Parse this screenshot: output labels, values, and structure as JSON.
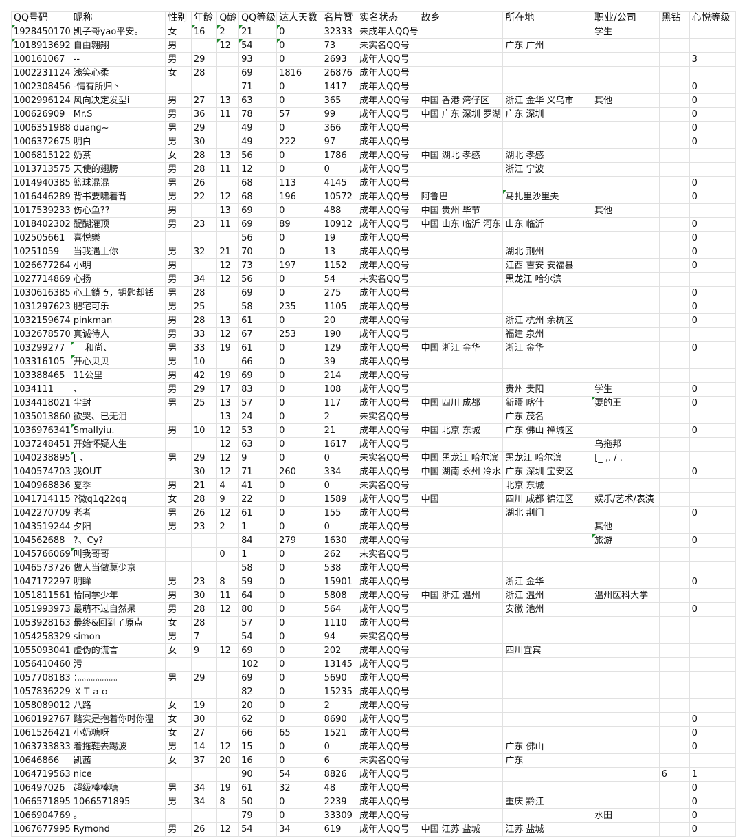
{
  "columns": [
    "QQ号码",
    "昵称",
    "性别",
    "年龄",
    "Q龄",
    "QQ等级",
    "达人天数",
    "名片赞",
    "实名状态",
    "故乡",
    "所在地",
    "职业/公司",
    "黑钻",
    "心悦等级"
  ],
  "marker_color": "#1e8a2c",
  "rows": [
    {
      "c": [
        "1928450170",
        "凯子哥yao平安。",
        "女",
        "16",
        "2",
        "21",
        "0",
        "32333",
        "未成年人QQ号",
        "",
        "",
        "学生",
        "",
        ""
      ],
      "marked": [
        0,
        3,
        4,
        5,
        6
      ]
    },
    {
      "c": [
        "1018913692",
        "自由翱翔",
        "男",
        "",
        "12",
        "54",
        "0",
        "73",
        "未实名QQ号",
        "",
        "广东 广州",
        "",
        "",
        ""
      ],
      "marked": [
        0,
        4,
        5,
        6
      ]
    },
    {
      "c": [
        "100161067",
        "--",
        "男",
        "29",
        "",
        "93",
        "0",
        "2693",
        "成年人QQ号",
        "",
        "",
        "",
        "",
        "3"
      ]
    },
    {
      "c": [
        "1002231124",
        "浅笑心柔",
        "女",
        "28",
        "",
        "69",
        "1816",
        "26876",
        "成年人QQ号",
        "",
        "",
        "",
        "",
        ""
      ]
    },
    {
      "c": [
        "1002308456",
        "-情有所归丶",
        "",
        "",
        "",
        "71",
        "0",
        "1417",
        "成年人QQ号",
        "",
        "",
        "",
        "",
        "0"
      ]
    },
    {
      "c": [
        "1002996124",
        "风向决定发型i",
        "男",
        "27",
        "13",
        "63",
        "0",
        "365",
        "成年人QQ号",
        "中国 香港 湾仔区",
        "浙江 金华 义乌市",
        "其他",
        "",
        "0"
      ]
    },
    {
      "c": [
        "100626909",
        "Mr.S",
        "男",
        "36",
        "11",
        "78",
        "57",
        "99",
        "成年人QQ号",
        "中国 广东 深圳 罗湖",
        "广东 深圳",
        "",
        "",
        "0"
      ]
    },
    {
      "c": [
        "1006351988",
        "duang~",
        "男",
        "29",
        "",
        "49",
        "0",
        "366",
        "成年人QQ号",
        "",
        "",
        "",
        "",
        "0"
      ]
    },
    {
      "c": [
        "1006372675",
        "明白",
        "男",
        "30",
        "",
        "49",
        "222",
        "97",
        "成年人QQ号",
        "",
        "",
        "",
        "",
        "0"
      ]
    },
    {
      "c": [
        "1006815122",
        "奶茶",
        "女",
        "28",
        "13",
        "56",
        "0",
        "1786",
        "成年人QQ号",
        "中国 湖北 孝感",
        "湖北 孝感",
        "",
        "",
        ""
      ]
    },
    {
      "c": [
        "1013713575",
        "天使的翅膀",
        "男",
        "28",
        "11",
        "12",
        "0",
        "0",
        "成年人QQ号",
        "",
        "浙江 宁波",
        "",
        "",
        ""
      ]
    },
    {
      "c": [
        "1014940385",
        "篮球混混",
        "男",
        "26",
        "",
        "68",
        "113",
        "4145",
        "成年人QQ号",
        "",
        "",
        "",
        "",
        "0"
      ]
    },
    {
      "c": [
        "1016446289",
        "背书要啸着背",
        "男",
        "22",
        "12",
        "68",
        "196",
        "10572",
        "成年人QQ号",
        "阿鲁巴",
        "马扎里沙里夫",
        "",
        "",
        "0"
      ],
      "marked": [
        10
      ]
    },
    {
      "c": [
        "1017539233",
        "伤心鱼??",
        "男",
        "",
        "13",
        "69",
        "0",
        "488",
        "成年人QQ号",
        "中国 贵州 毕节",
        "",
        "其他",
        "",
        ""
      ]
    },
    {
      "c": [
        "1018402302",
        "醍醐灌顶",
        "男",
        "23",
        "11",
        "69",
        "89",
        "10912",
        "成年人QQ号",
        "中国 山东 临沂 河东",
        "山东 临沂",
        "",
        "",
        "0"
      ]
    },
    {
      "c": [
        "102505661",
        "喜悦樂",
        "",
        "",
        "",
        "56",
        "0",
        "19",
        "成年人QQ号",
        "",
        "",
        "",
        "",
        "0"
      ]
    },
    {
      "c": [
        "10251059",
        "当我遇上你",
        "男",
        "32",
        "21",
        "70",
        "0",
        "13",
        "成年人QQ号",
        "",
        "湖北 荆州",
        "",
        "",
        "0"
      ]
    },
    {
      "c": [
        "1026677264",
        "小明",
        "男",
        "",
        "12",
        "73",
        "197",
        "1152",
        "成年人QQ号",
        "",
        "江西 吉安 安福县",
        "",
        "",
        "0"
      ]
    },
    {
      "c": [
        "1027714869",
        "心扬",
        "男",
        "34",
        "12",
        "56",
        "0",
        "54",
        "未实名QQ号",
        "",
        "黑龙江 哈尔滨",
        "",
        "",
        ""
      ]
    },
    {
      "c": [
        "1030616385",
        "心上鎖ㄋ，钥匙却铥",
        "男",
        "28",
        "",
        "69",
        "0",
        "275",
        "成年人QQ号",
        "",
        "",
        "",
        "",
        "0"
      ]
    },
    {
      "c": [
        "1031297623",
        "肥宅可乐",
        "男",
        "25",
        "",
        "58",
        "235",
        "1105",
        "成年人QQ号",
        "",
        "",
        "",
        "",
        "0"
      ]
    },
    {
      "c": [
        "1032159674",
        "pinkman",
        "男",
        "28",
        "13",
        "61",
        "0",
        "20",
        "成年人QQ号",
        "",
        "浙江 杭州 余杭区",
        "",
        "",
        "0"
      ]
    },
    {
      "c": [
        "1032678570",
        "真诚待人",
        "男",
        "33",
        "12",
        "67",
        "253",
        "190",
        "成年人QQ号",
        "",
        "福建 泉州",
        "",
        "",
        ""
      ]
    },
    {
      "c": [
        "103299277",
        "　 和尚、",
        "男",
        "33",
        "19",
        "61",
        "0",
        "129",
        "成年人QQ号",
        "中国 浙江 金华",
        "浙江 金华",
        "",
        "",
        "0"
      ],
      "marked": [
        1
      ]
    },
    {
      "c": [
        "103316105",
        "开心贝贝",
        "男",
        "10",
        "",
        "66",
        "0",
        "39",
        "成年人QQ号",
        "",
        "",
        "",
        "",
        ""
      ],
      "marked": [
        1
      ]
    },
    {
      "c": [
        "103388465",
        "11公里",
        "男",
        "42",
        "19",
        "69",
        "0",
        "214",
        "成年人QQ号",
        "",
        "",
        "",
        "",
        ""
      ]
    },
    {
      "c": [
        "1034111",
        "、",
        "男",
        "29",
        "17",
        "83",
        "0",
        "108",
        "成年人QQ号",
        "",
        "贵州 贵阳",
        "学生",
        "",
        "0"
      ]
    },
    {
      "c": [
        "1034418021",
        "尘封",
        "男",
        "25",
        "13",
        "57",
        "0",
        "117",
        "成年人QQ号",
        "中国 四川 成都",
        "新疆 喀什",
        "耍的王",
        "",
        "0"
      ],
      "marked": [
        11
      ]
    },
    {
      "c": [
        "1035013860",
        "欲哭、已无泪",
        "",
        "",
        "13",
        "24",
        "0",
        "2",
        "未实名QQ号",
        "",
        "广东 茂名",
        "",
        "",
        ""
      ]
    },
    {
      "c": [
        "1036976341",
        "  Smallyiu.",
        "男",
        "10",
        "12",
        "53",
        "0",
        "21",
        "成年人QQ号",
        "中国 北京 东城",
        "广东 佛山 禅城区",
        "",
        "",
        "0"
      ],
      "marked": [
        1
      ]
    },
    {
      "c": [
        "1037248451",
        "开始怀疑人生",
        "",
        "",
        "12",
        "63",
        "0",
        "1617",
        "成年人QQ号",
        "",
        "",
        "乌拖邦",
        "",
        ""
      ]
    },
    {
      "c": [
        "1040238895",
        "   [  、",
        "男",
        "29",
        "12",
        "9",
        "0",
        "0",
        "未实名QQ号",
        "中国 黑龙江 哈尔滨",
        "黑龙江 哈尔滨",
        "[_  ,. / .",
        "",
        ""
      ],
      "marked": [
        1
      ]
    },
    {
      "c": [
        "1040574703",
        "我OUT",
        "",
        "30",
        "12",
        "71",
        "260",
        "334",
        "成年人QQ号",
        "中国 湖南 永州 冷水",
        "广东 深圳 宝安区",
        "",
        "",
        "0"
      ]
    },
    {
      "c": [
        "1040968836",
        "夏季",
        "男",
        "21",
        "4",
        "41",
        "0",
        "0",
        "未实名QQ号",
        "",
        "北京 东城",
        "",
        "",
        ""
      ]
    },
    {
      "c": [
        "1041714115",
        "?微q1q22qq",
        "女",
        "28",
        "9",
        "22",
        "0",
        "1589",
        "成年人QQ号",
        "中国",
        "四川 成都 锦江区",
        "娱乐/艺术/表演",
        "",
        ""
      ]
    },
    {
      "c": [
        "1042270709",
        "老者",
        "男",
        "26",
        "12",
        "61",
        "0",
        "155",
        "成年人QQ号",
        "",
        "湖北 荆门",
        "",
        "",
        "0"
      ]
    },
    {
      "c": [
        "1043519244",
        "夕阳",
        "男",
        "23",
        "2",
        "1",
        "0",
        "0",
        "成年人QQ号",
        "",
        "",
        "其他",
        "",
        ""
      ]
    },
    {
      "c": [
        "104562688",
        "?、Cy?",
        "",
        "",
        "",
        "84",
        "279",
        "1630",
        "成年人QQ号",
        "",
        "",
        "旅游",
        "",
        "0"
      ],
      "marked": [
        11
      ]
    },
    {
      "c": [
        "1045766069",
        "叫我哥哥",
        "",
        "",
        "0",
        "1",
        "0",
        "262",
        "未实名QQ号",
        "",
        "",
        "",
        "",
        ""
      ],
      "marked": [
        1
      ]
    },
    {
      "c": [
        "1046573726",
        "做人当做莫少京",
        "",
        "",
        "",
        "58",
        "0",
        "538",
        "成年人QQ号",
        "",
        "",
        "",
        "",
        ""
      ]
    },
    {
      "c": [
        "1047172297",
        "明眸",
        "男",
        "23",
        "8",
        "59",
        "0",
        "15901",
        "成年人QQ号",
        "",
        "浙江 金华",
        "",
        "",
        "0"
      ]
    },
    {
      "c": [
        "1051811561",
        "恰同学少年",
        "男",
        "30",
        "11",
        "64",
        "0",
        "5808",
        "成年人QQ号",
        "中国 浙江 温州",
        "浙江 温州",
        "温州医科大学",
        "",
        ""
      ]
    },
    {
      "c": [
        "1051993973",
        "最萌不过自然呆",
        "男",
        "28",
        "12",
        "80",
        "0",
        "564",
        "成年人QQ号",
        "",
        "安徽 池州",
        "",
        "",
        "0"
      ]
    },
    {
      "c": [
        "1053928163",
        "最终&回到了原点",
        "女",
        "28",
        "",
        "57",
        "0",
        "1110",
        "成年人QQ号",
        "",
        "",
        "",
        "",
        ""
      ]
    },
    {
      "c": [
        "1054258329",
        "simon",
        "男",
        "7",
        "",
        "54",
        "0",
        "94",
        "未实名QQ号",
        "",
        "",
        "",
        "",
        ""
      ]
    },
    {
      "c": [
        "1055093041",
        "虚伪的谎言",
        "女",
        "9",
        "12",
        "69",
        "0",
        "202",
        "成年人QQ号",
        "",
        "四川宜宾",
        "",
        "",
        ""
      ]
    },
    {
      "c": [
        "1056410460",
        "污",
        "",
        "",
        "",
        "102",
        "0",
        "13145",
        "成年人QQ号",
        "",
        "",
        "",
        "",
        ""
      ]
    },
    {
      "c": [
        "1057708183",
        "：。。。。。。。。。",
        "男",
        "29",
        "",
        "69",
        "0",
        "5690",
        "成年人QQ号",
        "",
        "",
        "",
        "",
        ""
      ]
    },
    {
      "c": [
        "1057836229",
        "ＸＴａｏ",
        "",
        "",
        "",
        "82",
        "0",
        "15235",
        "成年人QQ号",
        "",
        "",
        "",
        "",
        ""
      ]
    },
    {
      "c": [
        "1058089012",
        "八路",
        "女",
        "19",
        "",
        "20",
        "0",
        "2",
        "成年人QQ号",
        "",
        "",
        "",
        "",
        ""
      ]
    },
    {
      "c": [
        "1060192767",
        "踏实是抱着你时你温",
        "女",
        "30",
        "",
        "62",
        "0",
        "8690",
        "成年人QQ号",
        "",
        "",
        "",
        "",
        "0"
      ]
    },
    {
      "c": [
        "1061526421",
        "小奶糖呀",
        "女",
        "27",
        "",
        "66",
        "65",
        "1521",
        "成年人QQ号",
        "",
        "",
        "",
        "",
        "0"
      ]
    },
    {
      "c": [
        "1063733833",
        "着拖鞋去踢波",
        "男",
        "14",
        "12",
        "15",
        "0",
        "0",
        "成年人QQ号",
        "",
        "广东 佛山",
        "",
        "",
        "0"
      ]
    },
    {
      "c": [
        "10646866",
        "凯茜",
        "女",
        "37",
        "20",
        "16",
        "0",
        "6",
        "未实名QQ号",
        "",
        "广东",
        "",
        "",
        ""
      ]
    },
    {
      "c": [
        "1064719563",
        "nice",
        "",
        "",
        "",
        "90",
        "54",
        "8826",
        "成年人QQ号",
        "",
        "",
        "",
        "6",
        "1"
      ]
    },
    {
      "c": [
        "106497026",
        "超级棒棒糖",
        "男",
        "34",
        "19",
        "61",
        "32",
        "48",
        "成年人QQ号",
        "",
        "",
        "",
        "",
        "0"
      ]
    },
    {
      "c": [
        "1066571895",
        "1066571895",
        "男",
        "34",
        "8",
        "50",
        "0",
        "2239",
        "成年人QQ号",
        "",
        "重庆 黔江",
        "",
        "",
        "0"
      ]
    },
    {
      "c": [
        "1066904769",
        "。",
        "",
        "",
        "",
        "79",
        "0",
        "33309",
        "成年人QQ号",
        "",
        "",
        "水田",
        "",
        "0"
      ]
    },
    {
      "c": [
        "1067677995",
        "Rymond",
        "男",
        "26",
        "12",
        "54",
        "34",
        "619",
        "成年人QQ号",
        "中国 江苏 盐城",
        "江苏 盐城",
        "",
        "",
        "0"
      ]
    }
  ]
}
